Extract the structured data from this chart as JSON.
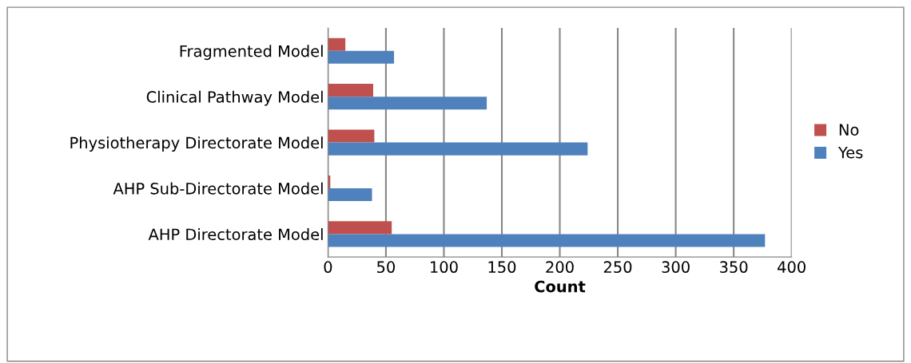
{
  "chart_data": {
    "type": "bar",
    "orientation": "horizontal",
    "categories": [
      "Fragmented Model",
      "Clinical Pathway Model",
      "Physiotherapy Directorate Model",
      "AHP Sub-Directorate Model",
      "AHP Directorate Model"
    ],
    "series": [
      {
        "name": "No",
        "color": "#c0504d",
        "values": [
          15,
          39,
          40,
          2,
          55
        ]
      },
      {
        "name": "Yes",
        "color": "#4f81bd",
        "values": [
          57,
          137,
          224,
          38,
          377
        ]
      }
    ],
    "xlabel": "Count",
    "xlim": [
      0,
      400
    ],
    "xticks": [
      0,
      50,
      100,
      150,
      200,
      250,
      300,
      350,
      400
    ],
    "grid": "x",
    "legend": "right"
  }
}
